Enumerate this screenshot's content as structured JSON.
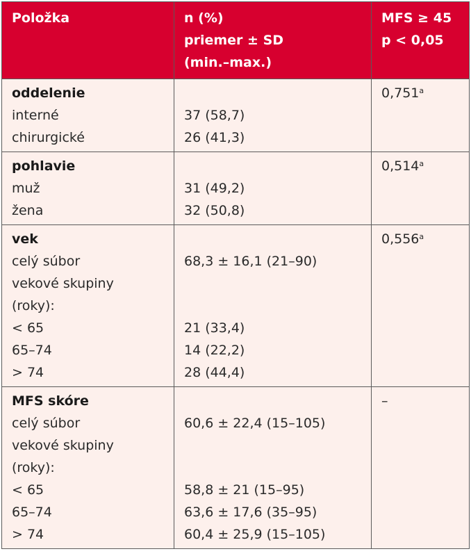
{
  "header": {
    "col1": "Položka",
    "col2": [
      "n (%)",
      "priemer ± SD",
      "(min.–max.)"
    ],
    "col3": [
      "MFS ≥ 45",
      "p < 0,05"
    ]
  },
  "sections": [
    {
      "title": "oddelenie",
      "p": "0,751",
      "p_sup": "a",
      "rows": [
        {
          "label": "interné",
          "value": "37 (58,7)"
        },
        {
          "label": "chirurgické",
          "value": "26 (41,3)"
        }
      ]
    },
    {
      "title": "pohlavie",
      "p": "0,514",
      "p_sup": "a",
      "rows": [
        {
          "label": "muž",
          "value": "31 (49,2)"
        },
        {
          "label": "žena",
          "value": "32 (50,8)"
        }
      ]
    },
    {
      "title": "vek",
      "p": "0,556",
      "p_sup": "a",
      "rows": [
        {
          "label": "celý súbor",
          "value": "68,3 ± 16,1 (21–90)"
        },
        {
          "label": "vekové skupiny",
          "value": ""
        },
        {
          "label": "(roky):",
          "value": ""
        },
        {
          "label": "< 65",
          "value": "21 (33,4)"
        },
        {
          "label": "65–74",
          "value": "14 (22,2)"
        },
        {
          "label": "> 74",
          "value": "28 (44,4)"
        }
      ]
    },
    {
      "title": "MFS skóre",
      "p": "–",
      "p_sup": "",
      "rows": [
        {
          "label": "celý súbor",
          "value": "60,6 ± 22,4 (15–105)"
        },
        {
          "label": "vekové skupiny",
          "value": ""
        },
        {
          "label": "(roky):",
          "value": ""
        },
        {
          "label": "< 65",
          "value": "58,8 ± 21 (15–95)"
        },
        {
          "label": "65–74",
          "value": "63,6 ± 17,6 (35–95)"
        },
        {
          "label": "> 74",
          "value": "60,4 ± 25,9 (15–105)"
        }
      ]
    }
  ]
}
